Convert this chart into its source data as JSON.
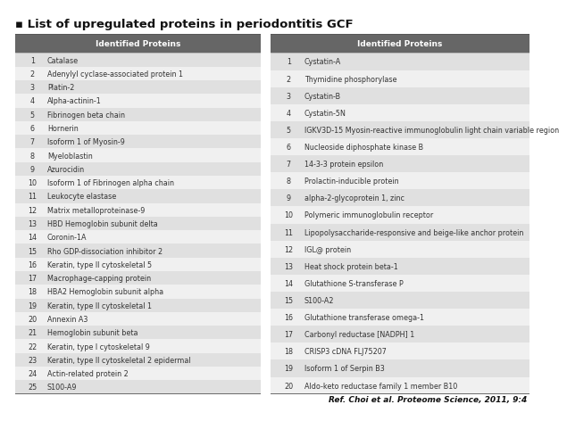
{
  "title": "▪ List of upregulated proteins in periodontitis GCF",
  "title_fontsize": 9.5,
  "upregulated": [
    "Catalase",
    "Adenylyl cyclase-associated protein 1",
    "Platin-2",
    "Alpha-actinin-1",
    "Fibrinogen beta chain",
    "Hornerin",
    "Isoform 1 of Myosin-9",
    "Myeloblastin",
    "Azurocidin",
    "Isoform 1 of Fibrinogen alpha chain",
    "Leukocyte elastase",
    "Matrix metalloproteinase-9",
    "HBD Hemoglobin subunit delta",
    "Coronin-1A",
    "Rho GDP-dissociation inhibitor 2",
    "Keratin, type II cytoskeletal 5",
    "Macrophage-capping protein",
    "HBA2 Hemoglobin subunit alpha",
    "Keratin, type II cytoskeletal 1",
    "Annexin A3",
    "Hemoglobin subunit beta",
    "Keratin, type I cytoskeletal 9",
    "Keratin, type II cytoskeletal 2 epidermal",
    "Actin-related protein 2",
    "S100-A9"
  ],
  "downregulated": [
    "Cystatin-A",
    "Thymidine phosphorylase",
    "Cystatin-B",
    "Cystatin-5N",
    "IGKV3D-15 Myosin-reactive immunoglobulin light chain variable region",
    "Nucleoside diphosphate kinase B",
    "14-3-3 protein epsilon",
    "Prolactin-inducible protein",
    "alpha-2-glycoprotein 1, zinc",
    "Polymeric immunoglobulin receptor",
    "Lipopolysaccharide-responsive and beige-like anchor protein",
    "IGL@ protein",
    "Heat shock protein beta-1",
    "Glutathione S-transferase P",
    "S100-A2",
    "Glutathione transferase omega-1",
    "Carbonyl reductase [NADPH] 1",
    "CRISP3 cDNA FLJ75207",
    "Isoform 1 of Serpin B3",
    "Aldo-keto reductase family 1 member B10"
  ],
  "header_text": "Identified Proteins",
  "header_bg": "#666666",
  "header_fg": "#ffffff",
  "row_odd_bg": "#e0e0e0",
  "row_even_bg": "#f0f0f0",
  "ref_prefix": "Ref. Choi ",
  "ref_italic": "et al.",
  "ref_journal": " Proteome Science",
  "ref_suffix": ", 2011, 9:4",
  "bg_color": "#ffffff",
  "text_color": "#333333",
  "row_fontsize": 5.8,
  "header_fontsize": 6.5
}
